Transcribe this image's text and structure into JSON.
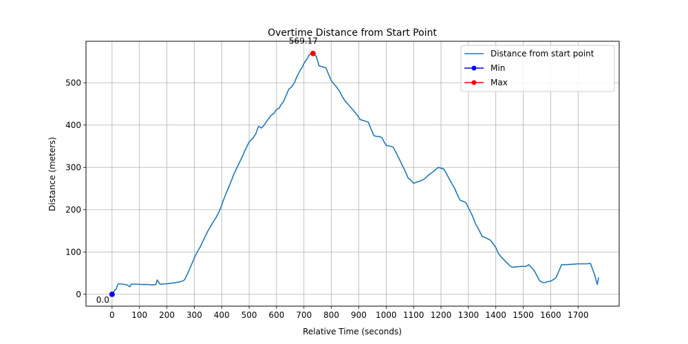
{
  "chart_data": {
    "type": "line",
    "title": "Overtime Distance from Start Point",
    "xlabel": "Relative Time (seconds)",
    "ylabel": "Distance (meters)",
    "xlim": [
      -95,
      1850
    ],
    "ylim": [
      -28,
      598
    ],
    "xticks": [
      0,
      100,
      200,
      300,
      400,
      500,
      600,
      700,
      800,
      900,
      1000,
      1100,
      1200,
      1300,
      1400,
      1500,
      1600,
      1700
    ],
    "yticks": [
      0,
      100,
      200,
      300,
      400,
      500
    ],
    "grid": true,
    "legend_position": "top-right",
    "series": [
      {
        "name": "Distance from start point",
        "color": "#1f77b4",
        "x": [
          0,
          10,
          15,
          20,
          25,
          40,
          55,
          65,
          70,
          90,
          110,
          130,
          150,
          160,
          165,
          175,
          200,
          225,
          245,
          260,
          265,
          280,
          295,
          305,
          315,
          320,
          335,
          350,
          365,
          380,
          390,
          398,
          405,
          415,
          430,
          445,
          460,
          475,
          485,
          500,
          515,
          525,
          530,
          535,
          545,
          555,
          565,
          575,
          580,
          590,
          600,
          610,
          615,
          625,
          635,
          645,
          655,
          665,
          675,
          685,
          695,
          700,
          710,
          720,
          730,
          735,
          745,
          755,
          765,
          780,
          790,
          800,
          815,
          830,
          840,
          850,
          865,
          880,
          895,
          905,
          920,
          935,
          945,
          955,
          965,
          975,
          985,
          990,
          1000,
          1015,
          1025,
          1040,
          1055,
          1070,
          1080,
          1090,
          1100,
          1110,
          1125,
          1140,
          1155,
          1170,
          1190,
          1210,
          1220,
          1235,
          1250,
          1260,
          1270,
          1280,
          1290,
          1300,
          1315,
          1325,
          1340,
          1350,
          1365,
          1380,
          1390,
          1400,
          1410,
          1420,
          1435,
          1445,
          1450,
          1460,
          1475,
          1495,
          1510,
          1515,
          1520,
          1530,
          1540,
          1550,
          1560,
          1570,
          1580,
          1590,
          1600,
          1610,
          1620,
          1630,
          1640,
          1660,
          1680,
          1700,
          1730,
          1745,
          1760,
          1770,
          1775
        ],
        "y": [
          0,
          10,
          12,
          22,
          25,
          24,
          22,
          18,
          24,
          24,
          23,
          23,
          22,
          23,
          34,
          24,
          25,
          27,
          29,
          32,
          35,
          55,
          78,
          93,
          105,
          110,
          130,
          150,
          167,
          182,
          195,
          207,
          220,
          237,
          260,
          285,
          305,
          325,
          340,
          360,
          370,
          380,
          390,
          397,
          393,
          400,
          410,
          418,
          423,
          427,
          437,
          440,
          447,
          455,
          470,
          485,
          490,
          500,
          515,
          528,
          538,
          546,
          555,
          566,
          569.17,
          566,
          563,
          540,
          538,
          535,
          520,
          505,
          493,
          480,
          467,
          457,
          446,
          435,
          423,
          413,
          410,
          407,
          390,
          375,
          373,
          373,
          370,
          363,
          352,
          350,
          348,
          330,
          310,
          290,
          275,
          270,
          262,
          265,
          268,
          273,
          282,
          289,
          300,
          296,
          285,
          267,
          250,
          235,
          222,
          220,
          217,
          205,
          185,
          168,
          150,
          137,
          133,
          128,
          120,
          110,
          96,
          88,
          78,
          72,
          68,
          64,
          65,
          66,
          66,
          68,
          70,
          63,
          56,
          44,
          32,
          28,
          28,
          30,
          31,
          35,
          40,
          55,
          70,
          70,
          71,
          72,
          72,
          73,
          47,
          23,
          40
        ]
      },
      {
        "name": "Min",
        "color": "#0000ff",
        "x": [
          0
        ],
        "y": [
          0.0
        ]
      },
      {
        "name": "Max",
        "color": "#ff0000",
        "x": [
          733
        ],
        "y": [
          569.17
        ]
      }
    ],
    "annotations": [
      {
        "text": "0.0",
        "x": 0,
        "y": 0.0
      },
      {
        "text": "569.17",
        "x": 733,
        "y": 569.17
      }
    ]
  }
}
